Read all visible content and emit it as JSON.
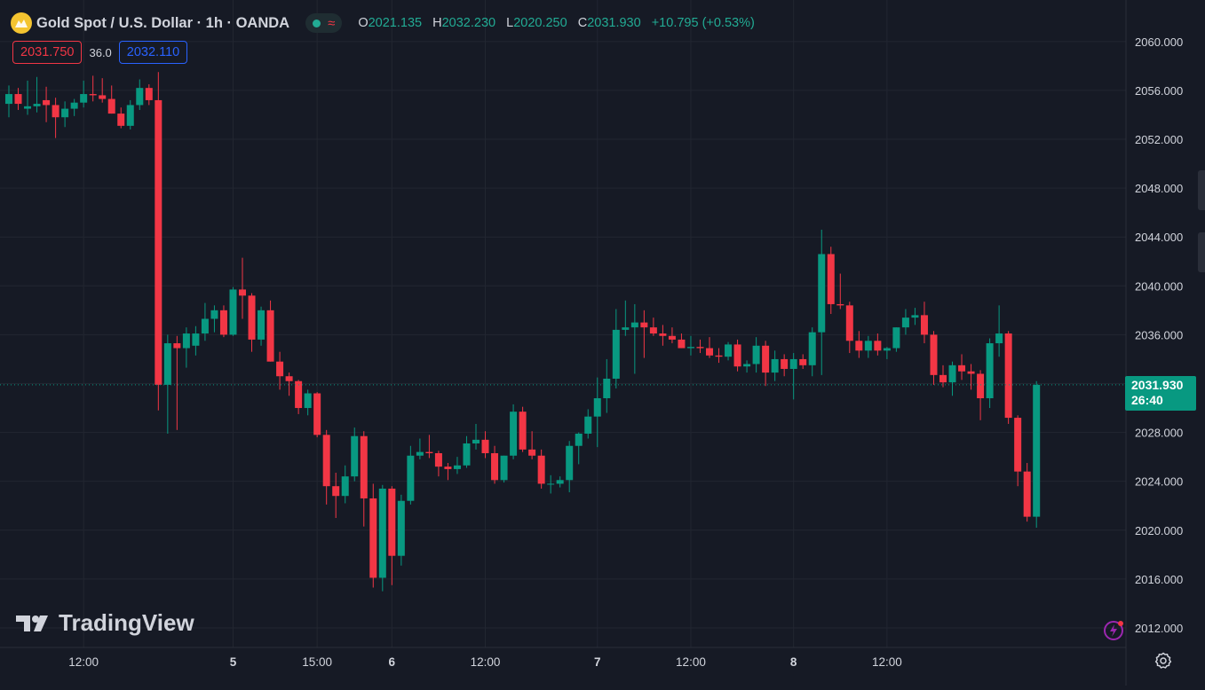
{
  "header": {
    "title": "Gold Spot / U.S. Dollar · 1h · OANDA",
    "ohlc": {
      "o_label": "O",
      "o_value": "2021.135",
      "h_label": "H",
      "h_value": "2032.230",
      "l_label": "L",
      "l_value": "2020.250",
      "c_label": "C",
      "c_value": "2031.930",
      "change": "+10.795 (+0.53%)"
    },
    "wave_symbol": "≈"
  },
  "trade": {
    "sell_price": "2031.750",
    "spread": "36.0",
    "buy_price": "2032.110"
  },
  "current_price_tag": {
    "price": "2031.930",
    "countdown": "26:40"
  },
  "brand": {
    "name": "TradingView"
  },
  "colors": {
    "up": "#089981",
    "down": "#f23645",
    "background": "#161a25",
    "grid": "#222631",
    "text": "#d1d4dc",
    "buy": "#2962ff"
  },
  "icons": {
    "flash": "flash-icon",
    "settings": "settings-icon",
    "logo": "gold-coin-icon"
  },
  "chart_data": {
    "type": "candlestick",
    "interval": "1h",
    "y_range": [
      2010.4,
      2063.4
    ],
    "y_ticks": [
      "2060.000",
      "2056.000",
      "2052.000",
      "2048.000",
      "2044.000",
      "2040.000",
      "2036.000",
      "2032.000",
      "2028.000",
      "2024.000",
      "2020.000",
      "2016.000",
      "2012.000"
    ],
    "x_ticks": [
      {
        "index": 8,
        "label": "12:00",
        "bold": false
      },
      {
        "index": 24,
        "label": "5",
        "bold": true
      },
      {
        "index": 33,
        "label": "15:00",
        "bold": false
      },
      {
        "index": 41,
        "label": "6",
        "bold": true
      },
      {
        "index": 51,
        "label": "12:00",
        "bold": false
      },
      {
        "index": 63,
        "label": "7",
        "bold": true
      },
      {
        "index": 73,
        "label": "12:00",
        "bold": false
      },
      {
        "index": 84,
        "label": "8",
        "bold": true
      },
      {
        "index": 94,
        "label": "12:00",
        "bold": false
      }
    ],
    "candles": [
      {
        "o": 2054.9,
        "h": 2056.4,
        "l": 2053.8,
        "c": 2055.7
      },
      {
        "o": 2055.7,
        "h": 2056.2,
        "l": 2054.4,
        "c": 2054.9
      },
      {
        "o": 2054.5,
        "h": 2056.8,
        "l": 2054.0,
        "c": 2054.7
      },
      {
        "o": 2054.7,
        "h": 2057.1,
        "l": 2054.2,
        "c": 2054.9
      },
      {
        "o": 2055.2,
        "h": 2056.3,
        "l": 2053.4,
        "c": 2054.8
      },
      {
        "o": 2054.8,
        "h": 2055.4,
        "l": 2052.1,
        "c": 2053.8
      },
      {
        "o": 2053.8,
        "h": 2055.1,
        "l": 2053.0,
        "c": 2054.5
      },
      {
        "o": 2054.5,
        "h": 2055.3,
        "l": 2053.9,
        "c": 2055.0
      },
      {
        "o": 2055.0,
        "h": 2056.8,
        "l": 2054.6,
        "c": 2055.7
      },
      {
        "o": 2055.7,
        "h": 2057.2,
        "l": 2055.1,
        "c": 2055.6
      },
      {
        "o": 2055.6,
        "h": 2057.0,
        "l": 2055.0,
        "c": 2055.3
      },
      {
        "o": 2055.3,
        "h": 2056.4,
        "l": 2054.1,
        "c": 2054.1
      },
      {
        "o": 2054.1,
        "h": 2054.6,
        "l": 2052.9,
        "c": 2053.1
      },
      {
        "o": 2053.1,
        "h": 2055.2,
        "l": 2052.8,
        "c": 2054.8
      },
      {
        "o": 2054.8,
        "h": 2056.9,
        "l": 2054.4,
        "c": 2056.2
      },
      {
        "o": 2056.2,
        "h": 2056.5,
        "l": 2054.8,
        "c": 2055.2
      },
      {
        "o": 2055.2,
        "h": 2057.5,
        "l": 2029.8,
        "c": 2031.9
      },
      {
        "o": 2031.9,
        "h": 2036.0,
        "l": 2027.9,
        "c": 2035.3
      },
      {
        "o": 2035.3,
        "h": 2035.9,
        "l": 2028.2,
        "c": 2034.9
      },
      {
        "o": 2034.9,
        "h": 2036.6,
        "l": 2033.3,
        "c": 2036.1
      },
      {
        "o": 2035.1,
        "h": 2036.7,
        "l": 2034.3,
        "c": 2036.1
      },
      {
        "o": 2036.1,
        "h": 2038.6,
        "l": 2035.5,
        "c": 2037.3
      },
      {
        "o": 2037.3,
        "h": 2038.4,
        "l": 2036.2,
        "c": 2038.0
      },
      {
        "o": 2038.0,
        "h": 2038.4,
        "l": 2035.8,
        "c": 2036.0
      },
      {
        "o": 2036.0,
        "h": 2039.9,
        "l": 2035.9,
        "c": 2039.7
      },
      {
        "o": 2039.7,
        "h": 2042.3,
        "l": 2037.3,
        "c": 2039.2
      },
      {
        "o": 2039.2,
        "h": 2039.4,
        "l": 2034.6,
        "c": 2035.6
      },
      {
        "o": 2035.6,
        "h": 2038.3,
        "l": 2035.1,
        "c": 2038.0
      },
      {
        "o": 2038.0,
        "h": 2038.8,
        "l": 2033.8,
        "c": 2033.8
      },
      {
        "o": 2033.8,
        "h": 2034.6,
        "l": 2031.5,
        "c": 2032.6
      },
      {
        "o": 2032.6,
        "h": 2032.9,
        "l": 2031.0,
        "c": 2032.2
      },
      {
        "o": 2032.2,
        "h": 2032.3,
        "l": 2029.5,
        "c": 2030.0
      },
      {
        "o": 2030.0,
        "h": 2031.5,
        "l": 2029.4,
        "c": 2031.2
      },
      {
        "o": 2031.2,
        "h": 2031.3,
        "l": 2027.6,
        "c": 2027.8
      },
      {
        "o": 2027.8,
        "h": 2028.2,
        "l": 2022.1,
        "c": 2023.6
      },
      {
        "o": 2023.6,
        "h": 2024.7,
        "l": 2021.0,
        "c": 2022.8
      },
      {
        "o": 2022.8,
        "h": 2025.3,
        "l": 2022.2,
        "c": 2024.4
      },
      {
        "o": 2024.4,
        "h": 2028.4,
        "l": 2024.0,
        "c": 2027.7
      },
      {
        "o": 2027.7,
        "h": 2028.1,
        "l": 2020.3,
        "c": 2022.6
      },
      {
        "o": 2022.6,
        "h": 2023.8,
        "l": 2015.3,
        "c": 2016.1
      },
      {
        "o": 2016.1,
        "h": 2023.7,
        "l": 2015.0,
        "c": 2023.4
      },
      {
        "o": 2023.4,
        "h": 2023.6,
        "l": 2015.5,
        "c": 2017.9
      },
      {
        "o": 2017.9,
        "h": 2022.9,
        "l": 2017.1,
        "c": 2022.4
      },
      {
        "o": 2022.4,
        "h": 2026.9,
        "l": 2022.1,
        "c": 2026.1
      },
      {
        "o": 2026.1,
        "h": 2027.5,
        "l": 2025.8,
        "c": 2026.4
      },
      {
        "o": 2026.4,
        "h": 2027.8,
        "l": 2025.9,
        "c": 2026.3
      },
      {
        "o": 2026.3,
        "h": 2026.5,
        "l": 2024.4,
        "c": 2025.2
      },
      {
        "o": 2025.2,
        "h": 2025.5,
        "l": 2024.1,
        "c": 2025.0
      },
      {
        "o": 2025.0,
        "h": 2026.0,
        "l": 2024.6,
        "c": 2025.3
      },
      {
        "o": 2025.3,
        "h": 2027.7,
        "l": 2025.1,
        "c": 2027.1
      },
      {
        "o": 2027.1,
        "h": 2028.7,
        "l": 2026.6,
        "c": 2027.4
      },
      {
        "o": 2027.4,
        "h": 2028.1,
        "l": 2025.9,
        "c": 2026.3
      },
      {
        "o": 2026.3,
        "h": 2026.9,
        "l": 2023.8,
        "c": 2024.1
      },
      {
        "o": 2024.1,
        "h": 2026.1,
        "l": 2023.9,
        "c": 2026.1
      },
      {
        "o": 2026.1,
        "h": 2030.3,
        "l": 2025.8,
        "c": 2029.7
      },
      {
        "o": 2029.7,
        "h": 2030.1,
        "l": 2026.4,
        "c": 2026.6
      },
      {
        "o": 2026.6,
        "h": 2028.1,
        "l": 2025.8,
        "c": 2026.1
      },
      {
        "o": 2026.1,
        "h": 2026.6,
        "l": 2023.4,
        "c": 2023.8
      },
      {
        "o": 2023.8,
        "h": 2024.5,
        "l": 2023.0,
        "c": 2023.8
      },
      {
        "o": 2023.8,
        "h": 2024.4,
        "l": 2023.5,
        "c": 2024.1
      },
      {
        "o": 2024.1,
        "h": 2027.3,
        "l": 2023.1,
        "c": 2026.9
      },
      {
        "o": 2026.9,
        "h": 2028.0,
        "l": 2025.4,
        "c": 2027.9
      },
      {
        "o": 2027.9,
        "h": 2029.9,
        "l": 2027.5,
        "c": 2029.3
      },
      {
        "o": 2029.3,
        "h": 2032.5,
        "l": 2026.8,
        "c": 2030.8
      },
      {
        "o": 2030.8,
        "h": 2034.0,
        "l": 2029.6,
        "c": 2032.4
      },
      {
        "o": 2032.4,
        "h": 2038.1,
        "l": 2031.6,
        "c": 2036.4
      },
      {
        "o": 2036.4,
        "h": 2038.8,
        "l": 2035.9,
        "c": 2036.6
      },
      {
        "o": 2036.6,
        "h": 2038.5,
        "l": 2032.8,
        "c": 2037.0
      },
      {
        "o": 2037.0,
        "h": 2038.0,
        "l": 2034.1,
        "c": 2036.6
      },
      {
        "o": 2036.6,
        "h": 2037.4,
        "l": 2035.9,
        "c": 2036.1
      },
      {
        "o": 2036.1,
        "h": 2036.8,
        "l": 2035.1,
        "c": 2035.9
      },
      {
        "o": 2035.9,
        "h": 2036.6,
        "l": 2035.3,
        "c": 2035.6
      },
      {
        "o": 2035.6,
        "h": 2036.1,
        "l": 2034.9,
        "c": 2034.9
      },
      {
        "o": 2034.9,
        "h": 2035.9,
        "l": 2034.3,
        "c": 2035.0
      },
      {
        "o": 2035.0,
        "h": 2035.6,
        "l": 2034.5,
        "c": 2034.9
      },
      {
        "o": 2034.9,
        "h": 2035.8,
        "l": 2034.1,
        "c": 2034.3
      },
      {
        "o": 2034.3,
        "h": 2034.9,
        "l": 2033.7,
        "c": 2034.2
      },
      {
        "o": 2034.2,
        "h": 2035.4,
        "l": 2033.9,
        "c": 2035.2
      },
      {
        "o": 2035.2,
        "h": 2035.6,
        "l": 2033.0,
        "c": 2033.4
      },
      {
        "o": 2033.4,
        "h": 2033.9,
        "l": 2032.9,
        "c": 2033.6
      },
      {
        "o": 2033.6,
        "h": 2035.8,
        "l": 2032.9,
        "c": 2035.1
      },
      {
        "o": 2035.1,
        "h": 2035.5,
        "l": 2031.8,
        "c": 2032.9
      },
      {
        "o": 2032.9,
        "h": 2034.7,
        "l": 2032.2,
        "c": 2034.0
      },
      {
        "o": 2034.0,
        "h": 2034.4,
        "l": 2032.6,
        "c": 2033.2
      },
      {
        "o": 2033.2,
        "h": 2034.5,
        "l": 2030.7,
        "c": 2034.0
      },
      {
        "o": 2034.0,
        "h": 2034.4,
        "l": 2033.2,
        "c": 2033.5
      },
      {
        "o": 2033.5,
        "h": 2036.6,
        "l": 2032.6,
        "c": 2036.2
      },
      {
        "o": 2036.2,
        "h": 2044.6,
        "l": 2032.7,
        "c": 2042.6
      },
      {
        "o": 2042.6,
        "h": 2043.2,
        "l": 2037.7,
        "c": 2038.5
      },
      {
        "o": 2038.5,
        "h": 2041.0,
        "l": 2038.1,
        "c": 2038.4
      },
      {
        "o": 2038.4,
        "h": 2038.7,
        "l": 2034.5,
        "c": 2035.5
      },
      {
        "o": 2035.5,
        "h": 2036.3,
        "l": 2034.1,
        "c": 2034.7
      },
      {
        "o": 2034.7,
        "h": 2035.9,
        "l": 2034.1,
        "c": 2035.5
      },
      {
        "o": 2035.5,
        "h": 2036.1,
        "l": 2034.3,
        "c": 2034.7
      },
      {
        "o": 2034.7,
        "h": 2035.0,
        "l": 2034.0,
        "c": 2034.9
      },
      {
        "o": 2034.9,
        "h": 2036.6,
        "l": 2034.6,
        "c": 2036.6
      },
      {
        "o": 2036.6,
        "h": 2038.1,
        "l": 2036.0,
        "c": 2037.4
      },
      {
        "o": 2037.4,
        "h": 2038.2,
        "l": 2036.8,
        "c": 2037.6
      },
      {
        "o": 2037.6,
        "h": 2038.7,
        "l": 2035.3,
        "c": 2036.0
      },
      {
        "o": 2036.0,
        "h": 2036.3,
        "l": 2031.9,
        "c": 2032.7
      },
      {
        "o": 2032.7,
        "h": 2033.5,
        "l": 2031.7,
        "c": 2032.1
      },
      {
        "o": 2032.1,
        "h": 2033.8,
        "l": 2031.0,
        "c": 2033.5
      },
      {
        "o": 2033.5,
        "h": 2034.4,
        "l": 2032.3,
        "c": 2033.0
      },
      {
        "o": 2033.0,
        "h": 2033.6,
        "l": 2031.5,
        "c": 2032.8
      },
      {
        "o": 2032.8,
        "h": 2033.1,
        "l": 2029.0,
        "c": 2030.8
      },
      {
        "o": 2030.8,
        "h": 2035.7,
        "l": 2030.0,
        "c": 2035.3
      },
      {
        "o": 2035.3,
        "h": 2038.4,
        "l": 2034.2,
        "c": 2036.1
      },
      {
        "o": 2036.1,
        "h": 2036.3,
        "l": 2028.7,
        "c": 2029.2
      },
      {
        "o": 2029.2,
        "h": 2029.4,
        "l": 2023.6,
        "c": 2024.8
      },
      {
        "o": 2024.8,
        "h": 2025.5,
        "l": 2020.7,
        "c": 2021.1
      },
      {
        "o": 2021.1,
        "h": 2032.2,
        "l": 2020.2,
        "c": 2031.9
      }
    ]
  }
}
